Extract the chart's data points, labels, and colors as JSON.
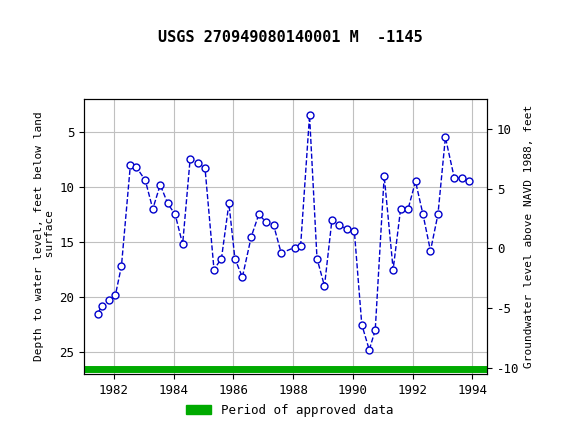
{
  "title": "USGS 270949080140001 M  -1145",
  "ylabel_left": "Depth to water level, feet below land\n surface",
  "ylabel_right": "Groundwater level above NAVD 1988, feet",
  "header_color": "#1a6b3c",
  "background_color": "#ffffff",
  "plot_bg_color": "#ffffff",
  "grid_color": "#c0c0c0",
  "line_color": "#0000cc",
  "marker_color": "#0000cc",
  "approved_bar_color": "#00aa00",
  "xlim": [
    1981.0,
    1994.5
  ],
  "ylim_left": [
    27.0,
    2.0
  ],
  "ylim_right": [
    -10.5,
    12.5
  ],
  "xticks": [
    1982,
    1984,
    1986,
    1988,
    1990,
    1992,
    1994
  ],
  "yticks_left": [
    5,
    10,
    15,
    20,
    25
  ],
  "yticks_right": [
    10,
    5,
    0,
    -5,
    -10
  ],
  "years": [
    1981.45,
    1981.6,
    1981.85,
    1982.05,
    1982.25,
    1982.55,
    1982.75,
    1983.05,
    1983.3,
    1983.55,
    1983.8,
    1984.05,
    1984.3,
    1984.55,
    1984.8,
    1985.05,
    1985.35,
    1985.6,
    1985.85,
    1986.05,
    1986.3,
    1986.6,
    1986.85,
    1987.1,
    1987.35,
    1987.6,
    1988.05,
    1988.25,
    1988.55,
    1988.8,
    1989.05,
    1989.3,
    1989.55,
    1989.8,
    1990.05,
    1990.3,
    1990.55,
    1990.75,
    1991.05,
    1991.35,
    1991.6,
    1991.85,
    1992.1,
    1992.35,
    1992.6,
    1992.85,
    1993.1,
    1993.4,
    1993.65,
    1993.9
  ],
  "depths": [
    21.5,
    20.8,
    20.3,
    19.8,
    17.2,
    8.0,
    8.2,
    9.4,
    12.0,
    9.8,
    11.5,
    12.5,
    15.2,
    7.5,
    7.8,
    8.3,
    17.5,
    16.5,
    11.5,
    16.5,
    18.2,
    14.5,
    12.5,
    13.2,
    13.5,
    16.0,
    15.5,
    15.4,
    3.5,
    16.5,
    19.0,
    13.0,
    13.5,
    13.8,
    14.0,
    22.5,
    24.8,
    23.0,
    9.0,
    17.5,
    12.0,
    12.0,
    9.5,
    12.5,
    15.8,
    12.5,
    5.5,
    9.2,
    9.2,
    9.5
  ],
  "legend_label": "Period of approved data"
}
